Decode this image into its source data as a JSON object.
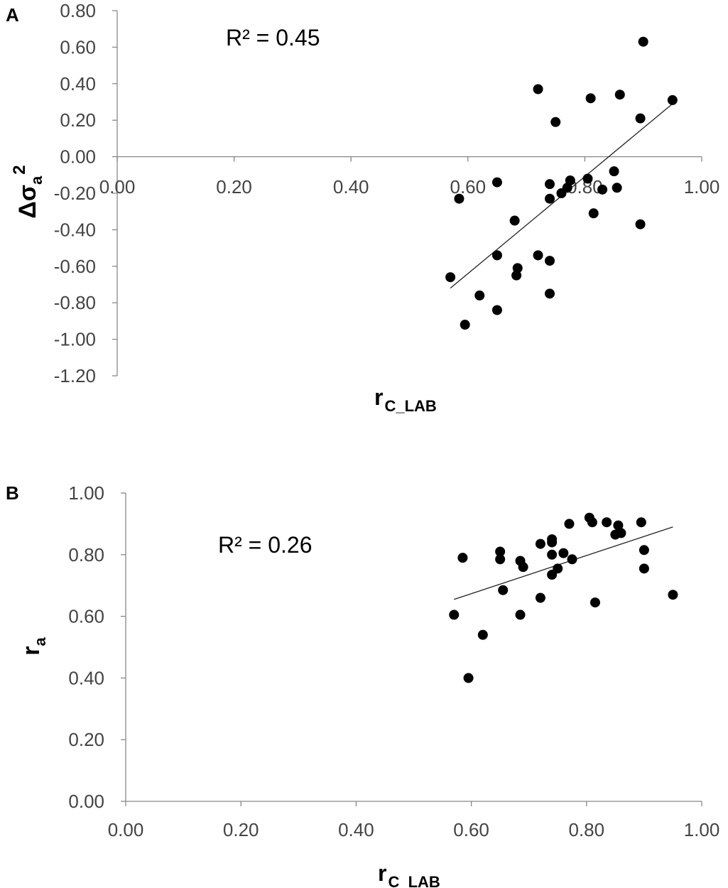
{
  "chart_data": [
    {
      "type": "scatter",
      "panel_label": "A",
      "xlabel": {
        "main": "r",
        "sub": "C_LAB"
      },
      "ylabel": {
        "main": "Δσ",
        "sub": "a",
        "sup": "2"
      },
      "annotation": "R² = 0.45",
      "xlim": [
        0,
        1
      ],
      "ylim": [
        -1.2,
        0.8
      ],
      "xticks": [
        "0.00",
        "0.20",
        "0.40",
        "0.60",
        "0.80",
        "1.00"
      ],
      "yticks": [
        "0.80",
        "0.60",
        "0.40",
        "0.20",
        "0.00",
        "-0.20",
        "-0.40",
        "-0.60",
        "-0.80",
        "-1.00",
        "-1.20"
      ],
      "grid": false,
      "points": [
        [
          0.57,
          -0.66
        ],
        [
          0.585,
          -0.23
        ],
        [
          0.595,
          -0.92
        ],
        [
          0.62,
          -0.76
        ],
        [
          0.65,
          -0.84
        ],
        [
          0.65,
          -0.54
        ],
        [
          0.65,
          -0.14
        ],
        [
          0.68,
          -0.35
        ],
        [
          0.683,
          -0.65
        ],
        [
          0.685,
          -0.61
        ],
        [
          0.72,
          -0.54
        ],
        [
          0.72,
          0.37
        ],
        [
          0.74,
          -0.57
        ],
        [
          0.74,
          -0.75
        ],
        [
          0.74,
          -0.15
        ],
        [
          0.74,
          -0.23
        ],
        [
          0.75,
          0.19
        ],
        [
          0.76,
          -0.2
        ],
        [
          0.77,
          -0.17
        ],
        [
          0.775,
          -0.13
        ],
        [
          0.805,
          -0.12
        ],
        [
          0.81,
          0.32
        ],
        [
          0.815,
          -0.31
        ],
        [
          0.83,
          -0.18
        ],
        [
          0.85,
          -0.08
        ],
        [
          0.855,
          -0.17
        ],
        [
          0.86,
          0.34
        ],
        [
          0.895,
          -0.37
        ],
        [
          0.895,
          0.21
        ],
        [
          0.9,
          0.63
        ],
        [
          0.95,
          0.31
        ]
      ],
      "trendline": [
        [
          0.57,
          -0.72
        ],
        [
          0.95,
          0.29
        ]
      ]
    },
    {
      "type": "scatter",
      "panel_label": "B",
      "xlabel": {
        "main": "r",
        "sub": "C_LAB"
      },
      "ylabel": {
        "main": "r",
        "sub": "a"
      },
      "annotation": "R² = 0.26",
      "xlim": [
        0,
        1
      ],
      "ylim": [
        0,
        1
      ],
      "xticks": [
        "0.00",
        "0.20",
        "0.40",
        "0.60",
        "0.80",
        "1.00"
      ],
      "yticks": [
        "1.00",
        "0.80",
        "0.60",
        "0.40",
        "0.20",
        "0.00"
      ],
      "grid": false,
      "points": [
        [
          0.57,
          0.605
        ],
        [
          0.585,
          0.79
        ],
        [
          0.595,
          0.4
        ],
        [
          0.62,
          0.54
        ],
        [
          0.65,
          0.81
        ],
        [
          0.65,
          0.785
        ],
        [
          0.655,
          0.685
        ],
        [
          0.685,
          0.78
        ],
        [
          0.685,
          0.605
        ],
        [
          0.69,
          0.76
        ],
        [
          0.72,
          0.835
        ],
        [
          0.72,
          0.66
        ],
        [
          0.74,
          0.84
        ],
        [
          0.74,
          0.85
        ],
        [
          0.74,
          0.8
        ],
        [
          0.74,
          0.735
        ],
        [
          0.75,
          0.755
        ],
        [
          0.76,
          0.805
        ],
        [
          0.77,
          0.9
        ],
        [
          0.775,
          0.785
        ],
        [
          0.805,
          0.92
        ],
        [
          0.81,
          0.905
        ],
        [
          0.815,
          0.645
        ],
        [
          0.835,
          0.905
        ],
        [
          0.85,
          0.865
        ],
        [
          0.86,
          0.87
        ],
        [
          0.855,
          0.895
        ],
        [
          0.895,
          0.905
        ],
        [
          0.9,
          0.815
        ],
        [
          0.9,
          0.755
        ],
        [
          0.95,
          0.67
        ]
      ],
      "trendline": [
        [
          0.57,
          0.655
        ],
        [
          0.95,
          0.89
        ]
      ]
    }
  ]
}
